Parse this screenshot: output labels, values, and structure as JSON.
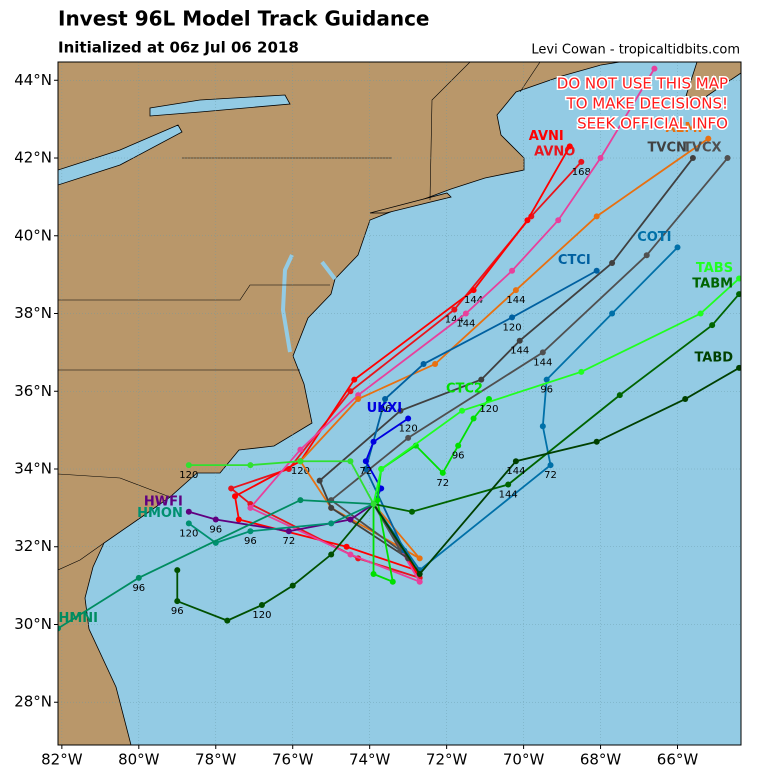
{
  "header": {
    "title": "Invest 96L Model Track Guidance",
    "subtitle": "Initialized at 06z Jul 06 2018",
    "credit": "Levi Cowan - tropicaltidbits.com"
  },
  "warning": [
    "DO NOT USE THIS MAP",
    "TO MAKE DECISIONS!",
    "SEEK OFFICIAL INFO"
  ],
  "map": {
    "xlim": [
      -82.1,
      -64.35
    ],
    "ylim": [
      26.9,
      44.47
    ],
    "xticks": [
      {
        "value": -82,
        "label": "82°W"
      },
      {
        "value": -80,
        "label": "80°W"
      },
      {
        "value": -78,
        "label": "78°W"
      },
      {
        "value": -76,
        "label": "76°W"
      },
      {
        "value": -74,
        "label": "74°W"
      },
      {
        "value": -72,
        "label": "72°W"
      },
      {
        "value": -70,
        "label": "70°W"
      },
      {
        "value": -68,
        "label": "68°W"
      },
      {
        "value": -66,
        "label": "66°W"
      }
    ],
    "yticks": [
      {
        "value": 28,
        "label": "28°N"
      },
      {
        "value": 30,
        "label": "30°N"
      },
      {
        "value": 32,
        "label": "32°N"
      },
      {
        "value": 34,
        "label": "34°N"
      },
      {
        "value": 36,
        "label": "36°N"
      },
      {
        "value": 38,
        "label": "38°N"
      },
      {
        "value": 40,
        "label": "40°N"
      },
      {
        "value": 42,
        "label": "42°N"
      },
      {
        "value": 44,
        "label": "44°N"
      }
    ],
    "tracks": [
      {
        "name": "AVNO",
        "color": "#e8141c",
        "lon": [
          -73.9,
          -72.7,
          -74.3,
          -77.1,
          -77.6,
          -76.1,
          -74.5,
          -71.8,
          -69.8,
          -68.5
        ],
        "lat": [
          33.1,
          31.2,
          31.7,
          33.1,
          33.5,
          34.0,
          36.0,
          38.1,
          40.5,
          41.9
        ],
        "hours": [
          null,
          null,
          null,
          null,
          null,
          null,
          null,
          144,
          null,
          168
        ]
      },
      {
        "name": "AVNI",
        "color": "#ff0000",
        "lon": [
          -73.9,
          -72.8,
          -74.6,
          -77.4,
          -77.5,
          -75.8,
          -74.4,
          -71.3,
          -69.9,
          -68.8
        ],
        "lat": [
          33.1,
          31.4,
          32.0,
          32.7,
          33.3,
          34.2,
          36.3,
          38.6,
          40.4,
          42.3
        ],
        "hours": [
          null,
          null,
          null,
          null,
          null,
          120,
          null,
          144,
          null,
          null
        ]
      },
      {
        "color": "#e8409c",
        "lon": [
          -73.9,
          -72.7,
          -74.5,
          -77.1,
          -75.8,
          -74.3,
          -71.5,
          -70.3,
          -69.1,
          -68.0,
          -66.6
        ],
        "lat": [
          33.1,
          31.1,
          31.8,
          33.0,
          34.5,
          35.9,
          38.0,
          39.1,
          40.4,
          42.0,
          44.3
        ],
        "hours": [
          null,
          null,
          null,
          null,
          null,
          null,
          144,
          null,
          null,
          null,
          null
        ]
      },
      {
        "name": "AEMI",
        "color": "#e87010",
        "lon": [
          -73.9,
          -72.7,
          -75.0,
          -75.8,
          -74.3,
          -72.3,
          -70.2,
          -68.1,
          -65.2
        ],
        "lat": [
          33.1,
          31.7,
          33.0,
          34.2,
          35.8,
          36.7,
          38.6,
          40.5,
          42.5
        ],
        "hours": [
          null,
          null,
          null,
          null,
          null,
          null,
          144,
          null,
          null
        ]
      },
      {
        "name": "TVCN",
        "color": "#404040",
        "lon": [
          -73.9,
          -73.0,
          -75.0,
          -75.3,
          -73.2,
          -71.1,
          -70.1,
          -67.7,
          -65.6
        ],
        "lat": [
          33.1,
          31.7,
          33.0,
          33.7,
          35.5,
          36.3,
          37.3,
          39.3,
          42.0
        ],
        "hours": [
          null,
          null,
          null,
          null,
          null,
          null,
          144,
          null,
          null
        ]
      },
      {
        "name": "TVCX",
        "color": "#505050",
        "lon": [
          -73.9,
          -73.2,
          -75.0,
          -73.0,
          -69.5,
          -66.8,
          -64.7
        ],
        "lat": [
          33.1,
          31.9,
          33.2,
          34.8,
          37.0,
          39.5,
          42.0
        ],
        "hours": [
          null,
          null,
          null,
          null,
          144,
          null,
          null
        ]
      },
      {
        "name": "CTCI",
        "color": "#0060a0",
        "lon": [
          -73.9,
          -73.1,
          -74.1,
          -73.6,
          -72.6,
          -70.3,
          -68.1
        ],
        "lat": [
          33.1,
          31.9,
          34.0,
          35.8,
          36.7,
          37.9,
          39.1
        ],
        "hours": [
          null,
          null,
          null,
          96,
          null,
          120,
          null
        ]
      },
      {
        "name": "COTI",
        "color": "#0070a8",
        "lon": [
          -73.9,
          -72.7,
          -69.3,
          -69.5,
          -69.4,
          -67.7,
          -66.0
        ],
        "lat": [
          33.1,
          31.4,
          34.1,
          35.1,
          36.3,
          38.0,
          39.7
        ],
        "hours": [
          null,
          null,
          72,
          null,
          96,
          null,
          null
        ]
      },
      {
        "name": "UKXI",
        "color": "#0000e0",
        "lon": [
          -73.9,
          -73.7,
          -74.1,
          -73.9,
          -73.0
        ],
        "lat": [
          33.1,
          33.5,
          34.2,
          34.7,
          35.3
        ],
        "hours": [
          null,
          null,
          72,
          null,
          120
        ]
      },
      {
        "name": "CTC2",
        "color": "#00e000",
        "lon": [
          -73.9,
          -73.9,
          -73.4,
          -73.8,
          -73.7,
          -72.8,
          -72.1,
          -71.7,
          -71.3,
          -70.9
        ],
        "lat": [
          33.1,
          31.3,
          31.1,
          33.2,
          34.0,
          34.6,
          33.9,
          34.6,
          35.3,
          35.8
        ],
        "hours": [
          null,
          null,
          null,
          null,
          null,
          null,
          72,
          96,
          null,
          120
        ]
      },
      {
        "name": "TABS",
        "color": "#20ff20",
        "lon": [
          -73.9,
          -73.7,
          -71.6,
          -68.5,
          -65.4,
          -64.4
        ],
        "lat": [
          33.1,
          34.0,
          35.5,
          36.5,
          38.0,
          38.9
        ],
        "hours": [
          null,
          null,
          null,
          null,
          null,
          null
        ]
      },
      {
        "name": "TABM",
        "color": "#006400",
        "lon": [
          -73.9,
          -72.9,
          -70.4,
          -67.5,
          -65.1,
          -64.4
        ],
        "lat": [
          33.1,
          32.9,
          33.6,
          35.9,
          37.7,
          38.5
        ],
        "hours": [
          null,
          null,
          144,
          null,
          null,
          null
        ]
      },
      {
        "name": "TABD",
        "color": "#004000",
        "lon": [
          -73.9,
          -72.7,
          -70.2,
          -68.1,
          -65.8,
          -64.4
        ],
        "lat": [
          33.1,
          31.3,
          34.2,
          34.7,
          35.8,
          36.6
        ],
        "hours": [
          null,
          null,
          144,
          null,
          null,
          null
        ]
      },
      {
        "color": "#005000",
        "lon": [
          -73.9,
          -75.0,
          -76.0,
          -76.8,
          -77.7,
          -79.0,
          -79.0
        ],
        "lat": [
          33.1,
          31.8,
          31.0,
          30.5,
          30.1,
          30.6,
          31.4
        ],
        "hours": [
          null,
          null,
          null,
          120,
          null,
          96,
          null
        ]
      },
      {
        "name": "HWFI",
        "color": "#600080",
        "lon": [
          -73.9,
          -74.5,
          -76.1,
          -78.0,
          -78.7
        ],
        "lat": [
          33.1,
          32.7,
          32.4,
          32.7,
          32.9
        ],
        "hours": [
          null,
          null,
          72,
          96,
          null
        ]
      },
      {
        "name": "HMON",
        "color": "#009070",
        "lon": [
          -73.9,
          -75.0,
          -77.1,
          -78.0,
          -78.7
        ],
        "lat": [
          33.1,
          32.6,
          32.4,
          32.1,
          32.6
        ],
        "hours": [
          null,
          null,
          96,
          null,
          120
        ]
      },
      {
        "name": "HMNI",
        "color": "#008c60",
        "lon": [
          -73.9,
          -75.8,
          -80.0,
          -82.1
        ],
        "lat": [
          33.1,
          33.2,
          31.2,
          29.9
        ],
        "hours": [
          null,
          null,
          96,
          null
        ]
      },
      {
        "color": "#30e030",
        "lon": [
          -73.9,
          -74.5,
          -75.8,
          -77.1,
          -78.7
        ],
        "lat": [
          33.1,
          34.2,
          34.2,
          34.1,
          34.1
        ],
        "hours": [
          null,
          null,
          null,
          null,
          120
        ]
      }
    ]
  }
}
